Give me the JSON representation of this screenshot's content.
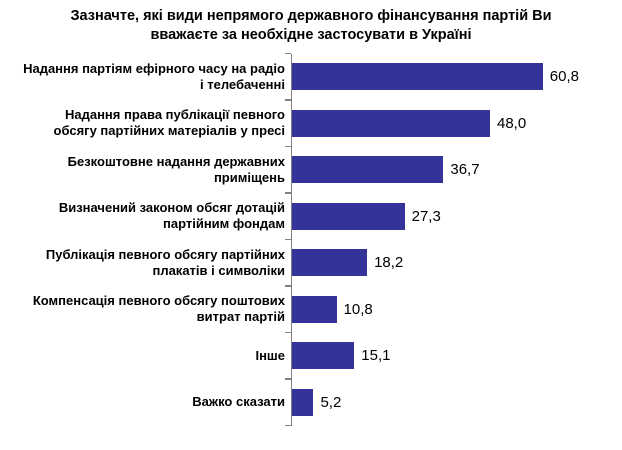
{
  "title": "Зазначте, які види непрямого державного фінансування партій Ви вважаєте за необхідне застосувати в Україні",
  "chart_data": {
    "type": "bar",
    "orientation": "horizontal",
    "title": "Зазначте, які види непрямого державного фінансування партій Ви вважаєте за необхідне застосувати в Україні",
    "categories": [
      "Надання партіям ефірного часу на радіо і телебаченні",
      "Надання права публікації певного обсягу партійних матеріалів у пресі",
      "Безкоштовне надання державних приміщень",
      "Визначений законом обсяг дотацій партійним фондам",
      "Публікація певного обсягу партійних плакатів і символіки",
      "Компенсація певного обсягу поштових витрат партій",
      "Інше",
      "Важко сказати"
    ],
    "values": [
      60.8,
      48.0,
      36.7,
      27.3,
      18.2,
      10.8,
      15.1,
      5.2
    ],
    "value_labels": [
      "60,8",
      "48,0",
      "36,7",
      "27,3",
      "18,2",
      "10,8",
      "15,1",
      "5,2"
    ],
    "xlabel": "",
    "ylabel": "",
    "xlim": [
      0,
      80
    ],
    "grid": false,
    "legend": false,
    "data_labels": true,
    "bar_color": "#333399",
    "axis_color": "#808080"
  }
}
